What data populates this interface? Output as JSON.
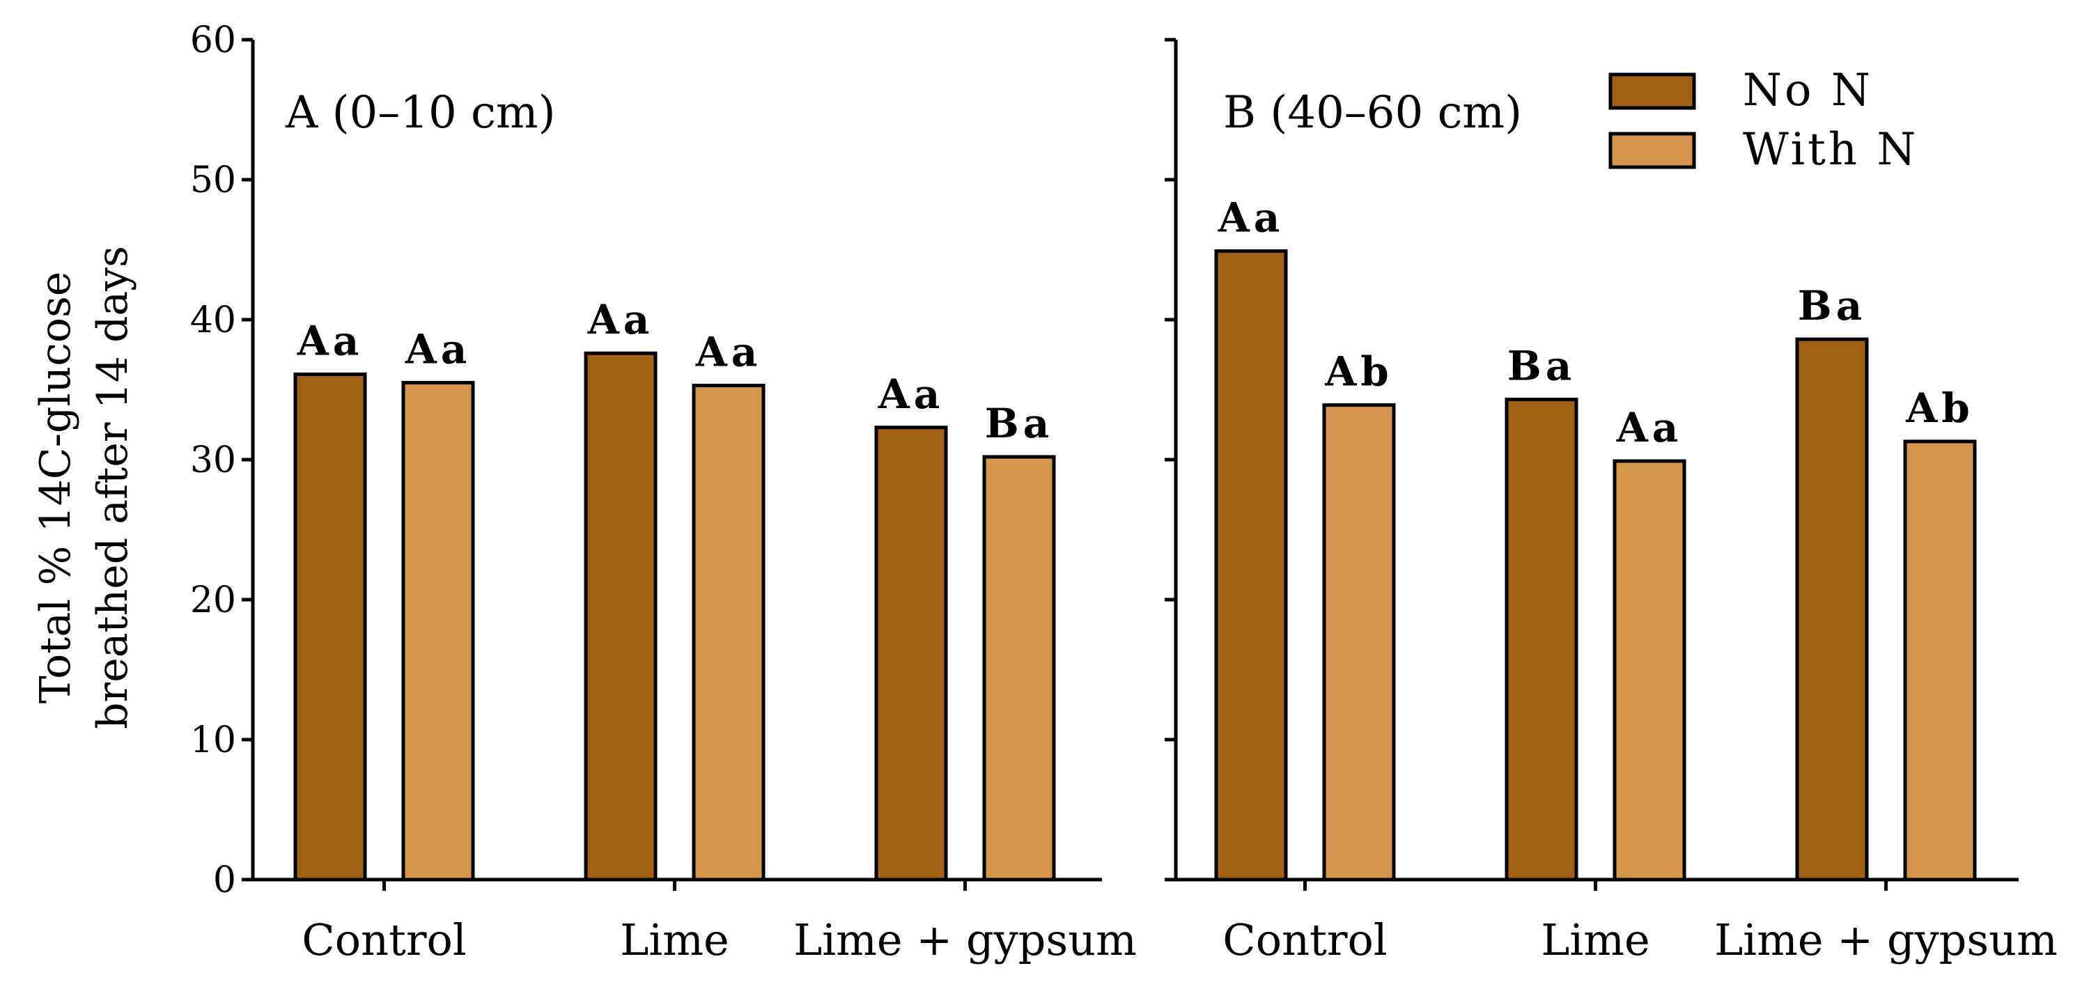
{
  "chart_data": {
    "type": "bar",
    "ylabel_line1": "Total % 14C-glucose",
    "ylabel_line2": "breathed after 14 days",
    "ylim": [
      0,
      60
    ],
    "yticks": [
      0,
      10,
      20,
      30,
      40,
      50,
      60
    ],
    "categories": [
      "Control",
      "Lime",
      "Lime + gypsum"
    ],
    "series_names": [
      "No N",
      "With N"
    ],
    "colors": {
      "no_n": "#a16112",
      "with_n": "#d5964c",
      "axis": "#000000"
    },
    "legend": [
      {
        "name": "No N",
        "color": "#a16112"
      },
      {
        "name": "With N",
        "color": "#d5964c"
      }
    ],
    "panels": [
      {
        "label": "A (0–10 cm)",
        "no_n": [
          36.1,
          37.6,
          32.3
        ],
        "with_n": [
          35.5,
          35.3,
          30.2
        ],
        "sig_no_n": [
          "Aa",
          "Aa",
          "Aa"
        ],
        "sig_with_n": [
          "Aa",
          "Aa",
          "Ba"
        ]
      },
      {
        "label": "B (40–60 cm)",
        "no_n": [
          44.9,
          34.3,
          38.6
        ],
        "with_n": [
          33.9,
          29.9,
          31.3
        ],
        "sig_no_n": [
          "Aa",
          "Ba",
          "Ba"
        ],
        "sig_with_n": [
          "Ab",
          "Aa",
          "Ab"
        ]
      }
    ]
  }
}
